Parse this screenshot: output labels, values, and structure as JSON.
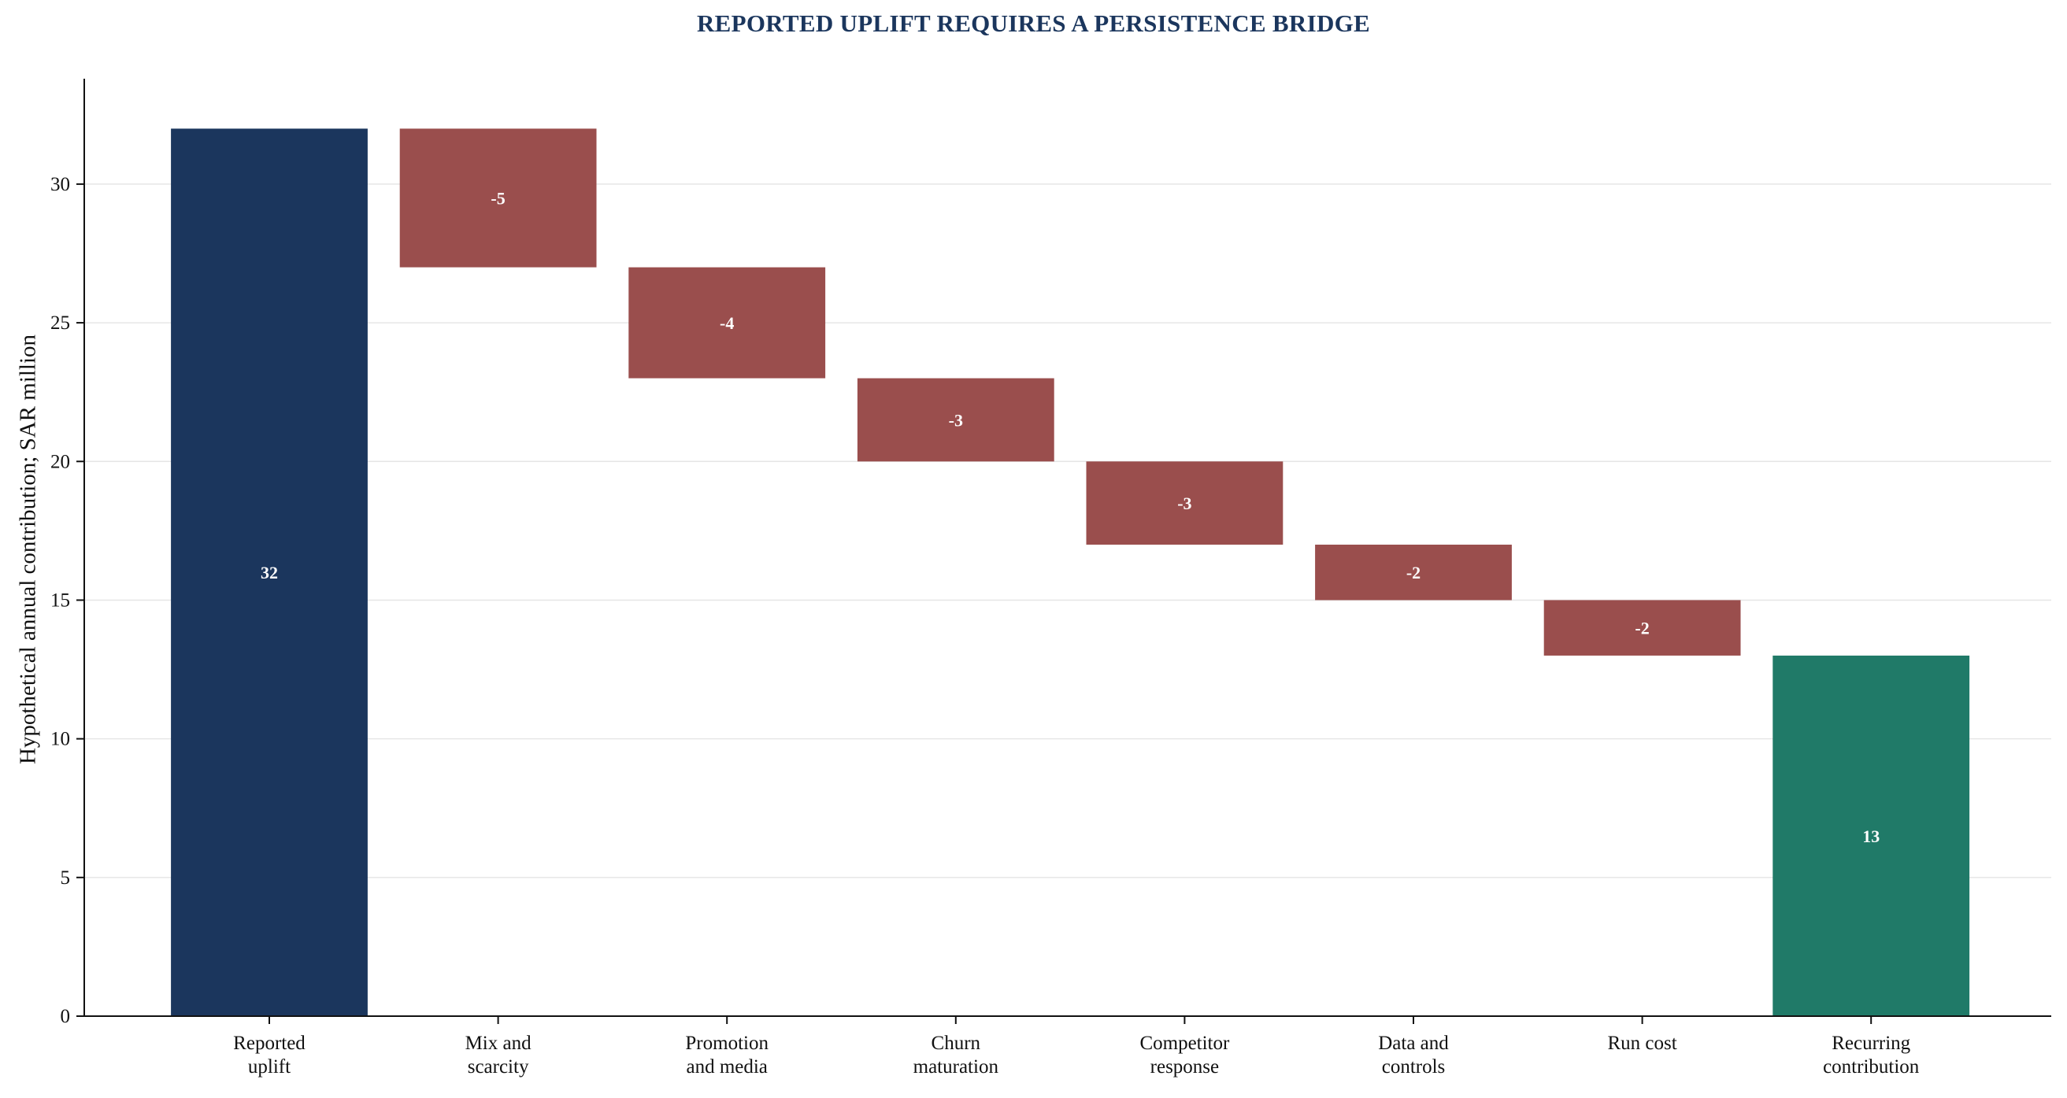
{
  "chart_data": {
    "type": "bar",
    "subtype": "waterfall",
    "title": "REPORTED UPLIFT REQUIRES A PERSISTENCE BRIDGE",
    "xlabel": "",
    "ylabel": "Hypothetical annual contribution; SAR million",
    "ylim": [
      0,
      33.8
    ],
    "yticks": [
      0,
      5,
      10,
      15,
      20,
      25,
      30
    ],
    "grid": "horizontal",
    "categories": [
      [
        "Reported",
        "uplift"
      ],
      [
        "Mix and",
        "scarcity"
      ],
      [
        "Promotion",
        "and media"
      ],
      [
        "Churn",
        "maturation"
      ],
      [
        "Competitor",
        "response"
      ],
      [
        "Data and",
        "controls"
      ],
      [
        "Run cost"
      ],
      [
        "Recurring",
        "contribution"
      ]
    ],
    "values": [
      32,
      -5,
      -4,
      -3,
      -3,
      -2,
      -2,
      13
    ],
    "kinds": [
      "total",
      "delta",
      "delta",
      "delta",
      "delta",
      "delta",
      "delta",
      "total"
    ],
    "data_labels": [
      "32",
      "-5",
      "-4",
      "-3",
      "-3",
      "-2",
      "-2",
      "13"
    ],
    "colors": {
      "start_total": "#1b365d",
      "decrease": "#9a4e4d",
      "end_total": "#207a68",
      "title": "#1b365d",
      "axis": "#111111",
      "grid": "#e6e6e6"
    }
  }
}
